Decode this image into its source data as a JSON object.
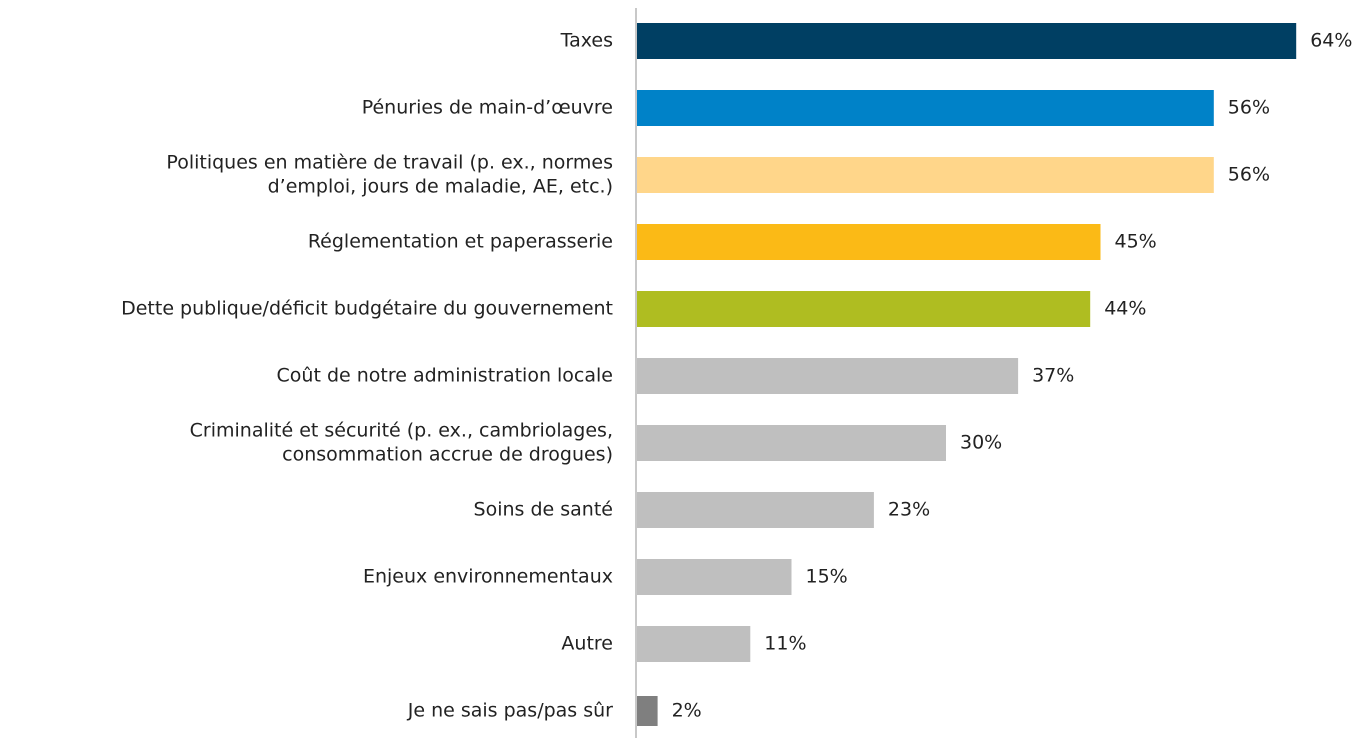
{
  "chart_data": {
    "type": "bar",
    "orientation": "horizontal",
    "categories": [
      [
        "Taxes"
      ],
      [
        "Pénuries de main-d’œuvre"
      ],
      [
        "Politiques en matière de travail (p. ex., normes",
        "d’emploi, jours de maladie, AE, etc.)"
      ],
      [
        "Réglementation et paperasserie"
      ],
      [
        "Dette publique/déficit budgétaire du gouvernement"
      ],
      [
        "Coût de notre administration locale"
      ],
      [
        "Criminalité et sécurité (p. ex., cambriolages,",
        "consommation accrue de drogues)"
      ],
      [
        "Soins de santé"
      ],
      [
        "Enjeux environnementaux"
      ],
      [
        "Autre"
      ],
      [
        "Je ne sais pas/pas sûr"
      ]
    ],
    "values": [
      64,
      56,
      56,
      45,
      44,
      37,
      30,
      23,
      15,
      11,
      2
    ],
    "value_labels": [
      "64%",
      "56%",
      "56%",
      "45%",
      "44%",
      "37%",
      "30%",
      "23%",
      "15%",
      "11%",
      "2%"
    ],
    "colors": [
      "#003f63",
      "#0082c8",
      "#ffd68a",
      "#fbba16",
      "#afbd21",
      "#bfbfbf",
      "#bfbfbf",
      "#bfbfbf",
      "#bfbfbf",
      "#bfbfbf",
      "#7f7f7f"
    ]
  }
}
